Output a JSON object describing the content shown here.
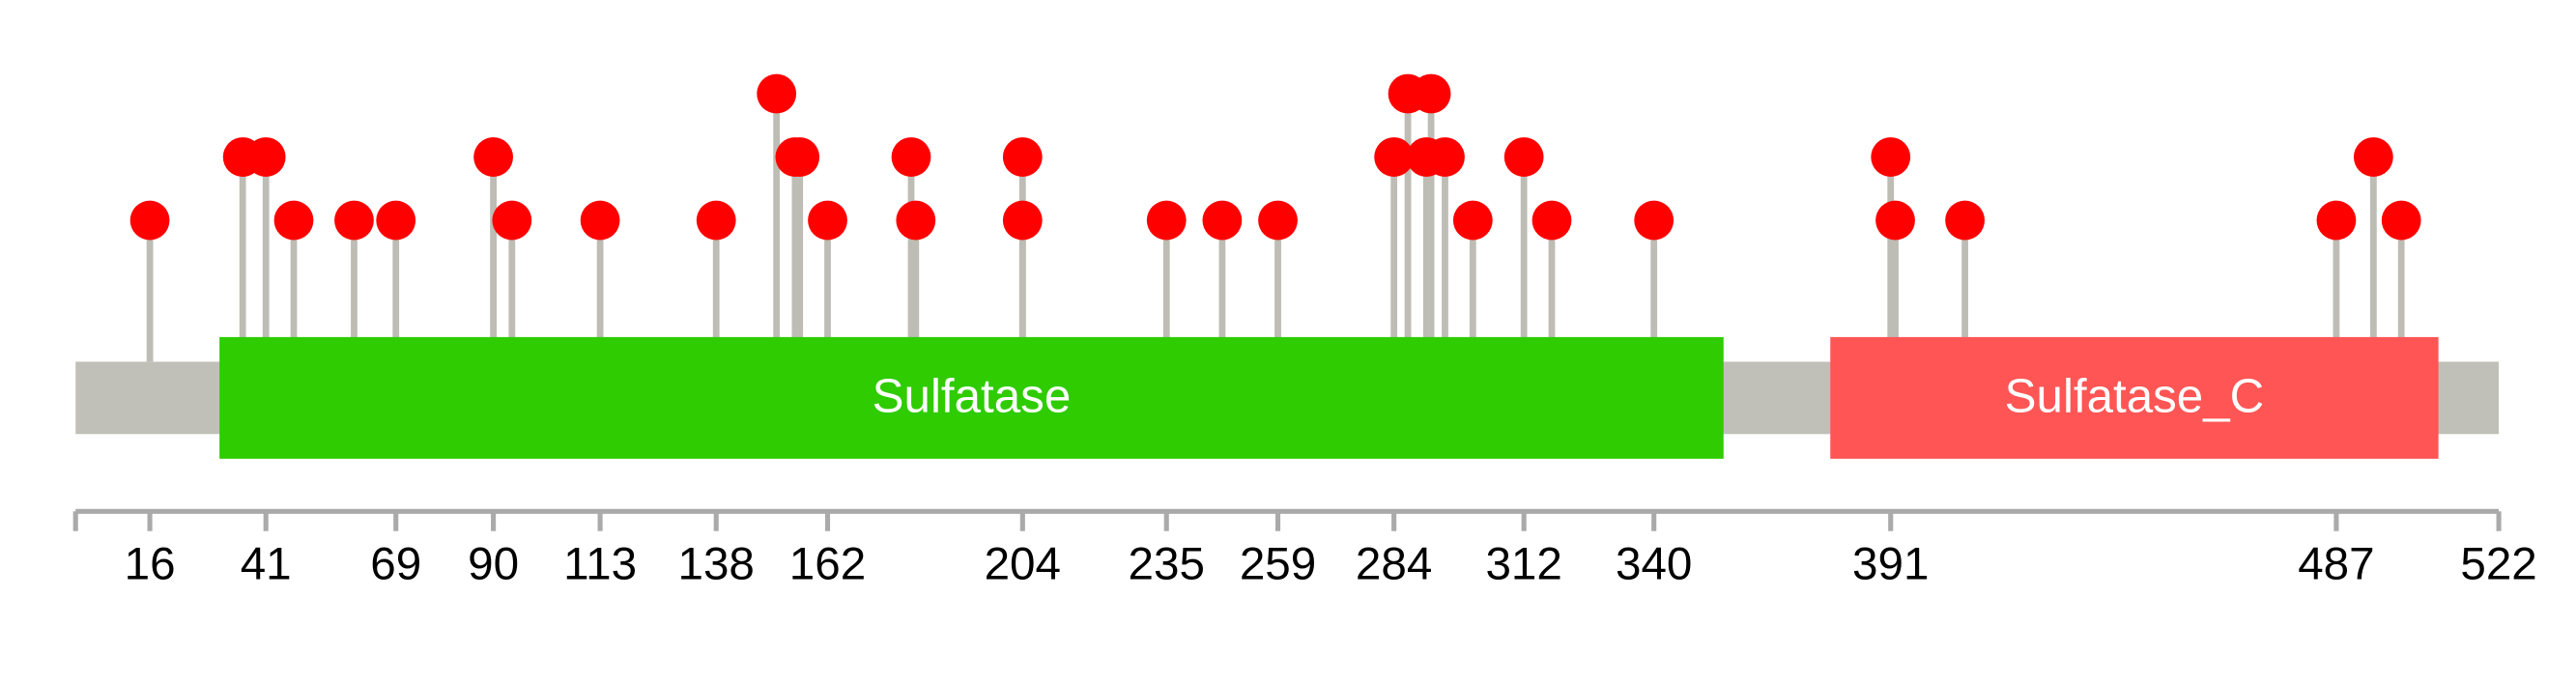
{
  "chart_data": {
    "type": "lollipop",
    "xlim": [
      0,
      522
    ],
    "xticks": [
      16,
      41,
      69,
      90,
      113,
      138,
      162,
      204,
      235,
      259,
      284,
      312,
      340,
      391,
      487,
      522
    ],
    "domains": [
      {
        "name": "Sulfatase",
        "start": 31,
        "end": 355,
        "color": "#2ecc00"
      },
      {
        "name": "Sulfatase_C",
        "start": 378,
        "end": 509,
        "color": "#ff5555"
      }
    ],
    "x": [
      16,
      36,
      41,
      47,
      60,
      69,
      90,
      94,
      113,
      138,
      151,
      155,
      156,
      162,
      180,
      181,
      204,
      204,
      235,
      247,
      259,
      284,
      287,
      292,
      291,
      295,
      301,
      312,
      318,
      340,
      391,
      392,
      407,
      487,
      495,
      501
    ],
    "values": [
      1,
      2,
      2,
      1,
      1,
      1,
      2,
      1,
      1,
      1,
      3,
      2,
      2,
      1,
      2,
      1,
      2,
      1,
      1,
      1,
      1,
      2,
      3,
      3,
      2,
      2,
      1,
      2,
      1,
      1,
      2,
      1,
      1,
      1,
      2,
      1
    ],
    "color": "#ff0000"
  }
}
